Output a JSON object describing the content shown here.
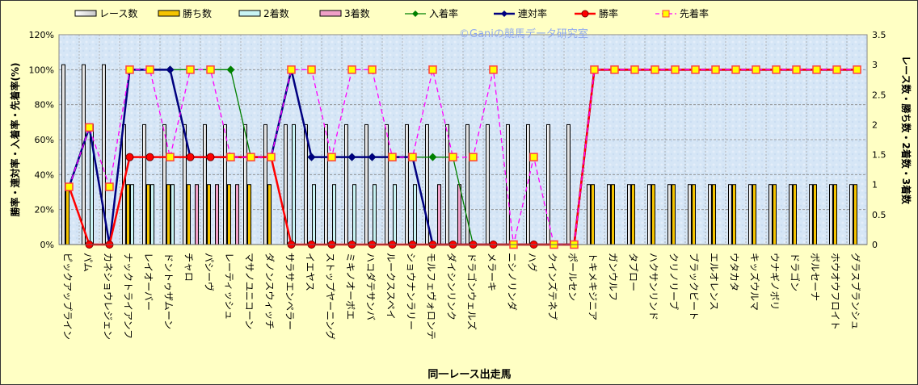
{
  "chart_data": {
    "type": "bar+line",
    "watermark": "©Ganiの競馬データ研究室",
    "xlabel": "同一レース出走馬",
    "ylabel_left": "勝率・連対率・入着率・先着率(%)",
    "ylabel_right": "レース数・勝ち数・2着数・3着数",
    "ylim_left": [
      0,
      120
    ],
    "yticks_left": [
      "0%",
      "20%",
      "40%",
      "60%",
      "80%",
      "100%",
      "120%"
    ],
    "ylim_right": [
      0,
      3.5
    ],
    "yticks_right": [
      "0",
      "0.5",
      "1",
      "1.5",
      "2",
      "2.5",
      "3",
      "3.5"
    ],
    "grid": true,
    "legend_position": "top",
    "legend": [
      "レース数",
      "勝ち数",
      "2着数",
      "3着数",
      "入着率",
      "連対率",
      "勝率",
      "先着率"
    ],
    "colors": {
      "races": "#F0F0F0",
      "wins": "#F5C400",
      "second": "#C8F4F4",
      "third": "#F0A0C8",
      "place": "#008000",
      "rentai": "#000080",
      "win": "#FF0000",
      "senchaku": "#FF00FF"
    },
    "categories": [
      "ピックアップライン",
      "パム",
      "カネショウレジェン",
      "ナックトライアンフ",
      "レイオーバー",
      "ドントゥザムーン",
      "チャロ",
      "パシーヴ",
      "レーティッシュ",
      "マサノユニコーン",
      "ダノンスウィッチ",
      "サラサエンペラー",
      "イエヤス",
      "ストップヤーニング",
      "ミキノオーボエ",
      "ハコダテサンバ",
      "ルークススペイ",
      "ショウナンラリー",
      "モルフェヴォロンテ",
      "ダイシンリンク",
      "ドラゴンウェルズ",
      "メラーキ",
      "ニシノリンダ",
      "ハグ",
      "クインズテネブ",
      "ポールセン",
      "トキメキジニア",
      "ガンウルフ",
      "タブロー",
      "ハクサンリンド",
      "クリノリーブ",
      "ブラックビート",
      "エルオレンス",
      "ウタカタ",
      "キッズウルマ",
      "ウナギノボリ",
      "ドラゴン",
      "ボルセーナ",
      "ホウオウフロイト",
      "グラスブランシュ"
    ],
    "series": [
      {
        "name": "レース数",
        "axis": "right",
        "kind": "bar",
        "values": [
          3,
          3,
          3,
          2,
          2,
          2,
          2,
          2,
          2,
          2,
          2,
          2,
          2,
          2,
          2,
          2,
          2,
          2,
          2,
          2,
          2,
          2,
          2,
          2,
          2,
          2,
          1,
          1,
          1,
          1,
          1,
          1,
          1,
          1,
          1,
          1,
          1,
          1,
          1,
          1
        ]
      },
      {
        "name": "勝ち数",
        "axis": "right",
        "kind": "bar",
        "values": [
          1,
          0,
          0,
          1,
          1,
          1,
          1,
          1,
          1,
          1,
          1,
          0,
          0,
          0,
          0,
          0,
          0,
          0,
          0,
          0,
          0,
          0,
          0,
          0,
          0,
          0,
          1,
          1,
          1,
          1,
          1,
          1,
          1,
          1,
          1,
          1,
          1,
          1,
          1,
          1
        ]
      },
      {
        "name": "2着数",
        "axis": "right",
        "kind": "bar",
        "values": [
          0,
          2,
          0,
          1,
          1,
          1,
          0,
          0,
          0,
          0,
          0,
          2,
          1,
          1,
          1,
          1,
          1,
          1,
          0,
          0,
          0,
          0,
          0,
          0,
          0,
          0,
          0,
          0,
          0,
          0,
          0,
          0,
          0,
          0,
          0,
          0,
          0,
          0,
          0,
          0
        ]
      },
      {
        "name": "3着数",
        "axis": "right",
        "kind": "bar",
        "values": [
          0,
          0,
          0,
          0,
          0,
          0,
          1,
          1,
          1,
          0,
          0,
          0,
          0,
          0,
          0,
          0,
          0,
          0,
          1,
          1,
          0,
          0,
          0,
          0,
          0,
          0,
          0,
          0,
          0,
          0,
          0,
          0,
          0,
          0,
          0,
          0,
          0,
          0,
          0,
          0
        ]
      },
      {
        "name": "入着率",
        "axis": "left",
        "kind": "line",
        "values": [
          33,
          67,
          0,
          100,
          100,
          100,
          100,
          100,
          100,
          50,
          50,
          100,
          50,
          50,
          50,
          50,
          50,
          50,
          50,
          50,
          0,
          0,
          0,
          0,
          0,
          0,
          100,
          100,
          100,
          100,
          100,
          100,
          100,
          100,
          100,
          100,
          100,
          100,
          100,
          100
        ]
      },
      {
        "name": "連対率",
        "axis": "left",
        "kind": "line",
        "values": [
          33,
          67,
          0,
          100,
          100,
          100,
          50,
          50,
          50,
          50,
          50,
          100,
          50,
          50,
          50,
          50,
          50,
          50,
          0,
          0,
          0,
          0,
          0,
          0,
          0,
          0,
          100,
          100,
          100,
          100,
          100,
          100,
          100,
          100,
          100,
          100,
          100,
          100,
          100,
          100
        ]
      },
      {
        "name": "勝率",
        "axis": "left",
        "kind": "line",
        "values": [
          33,
          0,
          0,
          50,
          50,
          50,
          50,
          50,
          50,
          50,
          50,
          0,
          0,
          0,
          0,
          0,
          0,
          0,
          0,
          0,
          0,
          0,
          0,
          0,
          0,
          0,
          100,
          100,
          100,
          100,
          100,
          100,
          100,
          100,
          100,
          100,
          100,
          100,
          100,
          100
        ]
      },
      {
        "name": "先着率",
        "axis": "left",
        "kind": "line",
        "values": [
          33,
          67,
          33,
          100,
          100,
          50,
          100,
          100,
          50,
          50,
          50,
          100,
          100,
          50,
          100,
          100,
          50,
          50,
          100,
          50,
          50,
          100,
          0,
          50,
          0,
          0,
          100,
          100,
          100,
          100,
          100,
          100,
          100,
          100,
          100,
          100,
          100,
          100,
          100,
          100
        ]
      }
    ]
  }
}
